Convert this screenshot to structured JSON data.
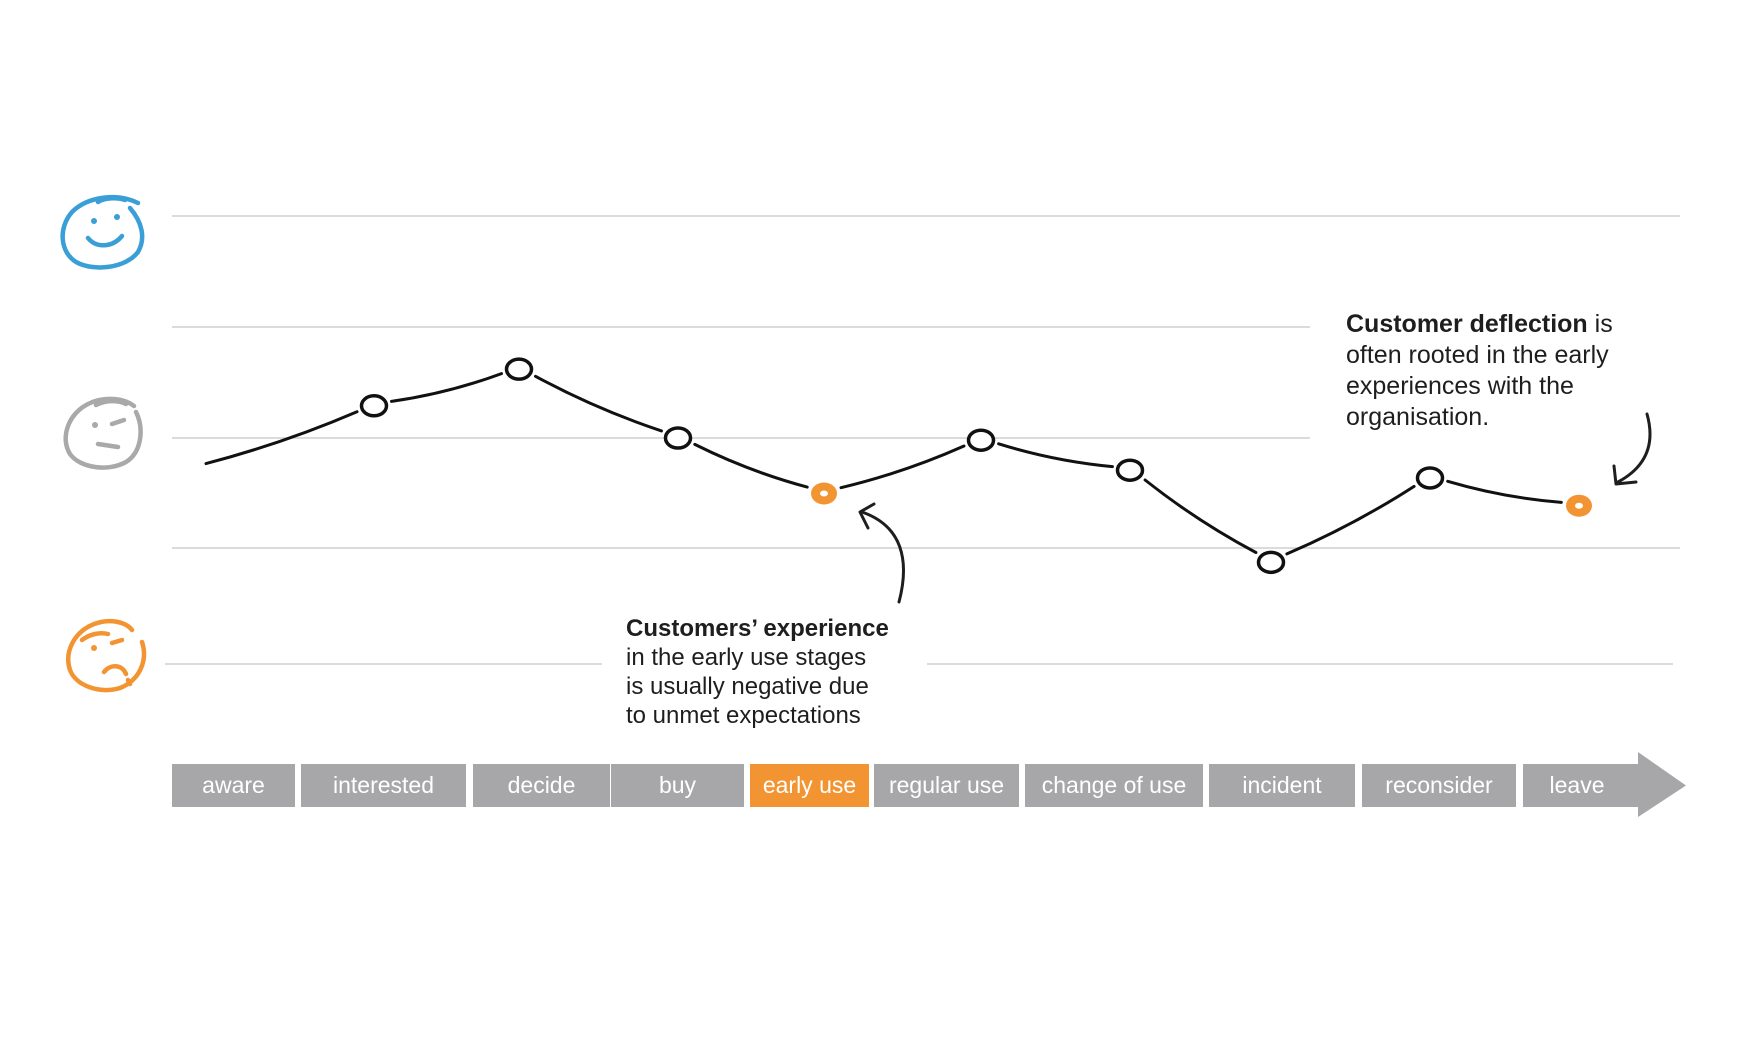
{
  "stages": [
    {
      "label": "aware",
      "highlight": false
    },
    {
      "label": "interested",
      "highlight": false
    },
    {
      "label": "decide",
      "highlight": false
    },
    {
      "label": "buy",
      "highlight": false
    },
    {
      "label": "early use",
      "highlight": true
    },
    {
      "label": "regular use",
      "highlight": false
    },
    {
      "label": "change of use",
      "highlight": false
    },
    {
      "label": "incident",
      "highlight": false
    },
    {
      "label": "reconsider",
      "highlight": false
    },
    {
      "label": "leave",
      "highlight": false
    }
  ],
  "experience_curve": {
    "levels": [
      "happy",
      "neutral",
      "sad"
    ],
    "points": [
      {
        "stage": "interested",
        "value": 0.29,
        "highlight": false
      },
      {
        "stage": "decide",
        "value": 0.62,
        "highlight": false
      },
      {
        "stage": "buy",
        "value": 0.0,
        "highlight": false
      },
      {
        "stage": "early use",
        "value": -0.5,
        "highlight": true
      },
      {
        "stage": "regular use",
        "value": -0.02,
        "highlight": false
      },
      {
        "stage": "change of use",
        "value": -0.29,
        "highlight": false
      },
      {
        "stage": "incident",
        "value": -1.12,
        "highlight": false
      },
      {
        "stage": "reconsider",
        "value": -0.36,
        "highlight": false
      },
      {
        "stage": "leave",
        "value": -0.61,
        "highlight": true
      }
    ],
    "start_value": -0.05
  },
  "annotations": {
    "early_use": {
      "bold": "Customers’ experience",
      "lines": [
        "in the early use stages",
        "is usually negative due",
        "to unmet expectations"
      ]
    },
    "deflection": {
      "bold": "Customer deflection",
      "rest_first": " is",
      "lines": [
        "often rooted in the early",
        "experiences with the",
        "organisation."
      ]
    }
  },
  "colors": {
    "happy": "#3a9fd6",
    "neutral": "#a9a9ab",
    "sad": "#f39433",
    "stage_bar": "#a7a7a9",
    "highlight": "#f39433",
    "line": "#111111",
    "grid": "#cfcfcf"
  },
  "icons": [
    "happy-face-icon",
    "neutral-face-icon",
    "sad-face-icon",
    "arrow-head-icon"
  ]
}
